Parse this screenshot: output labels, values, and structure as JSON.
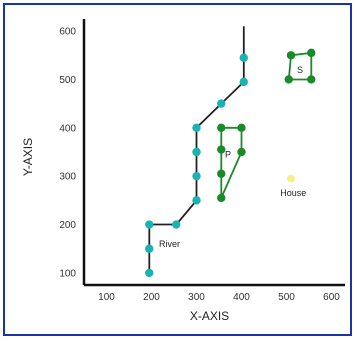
{
  "chart_data": {
    "type": "scatter",
    "title": "",
    "xlabel": "X-AXIS",
    "ylabel": "Y-AXIS",
    "xlim": [
      50,
      630
    ],
    "ylim": [
      75,
      625
    ],
    "x_ticks": [
      "100",
      "200",
      "300",
      "400",
      "500",
      "600"
    ],
    "x_tick_values": [
      100,
      200,
      300,
      400,
      500,
      600
    ],
    "y_ticks": [
      "100",
      "200",
      "300",
      "400",
      "500",
      "600"
    ],
    "y_tick_values": [
      100,
      200,
      300,
      400,
      500,
      600
    ],
    "grid": false,
    "series": [
      {
        "name": "River",
        "color": "#19b3b3",
        "line_color": "#222222",
        "closed": false,
        "points": [
          {
            "x": 195,
            "y": 100
          },
          {
            "x": 195,
            "y": 150
          },
          {
            "x": 195,
            "y": 200
          },
          {
            "x": 255,
            "y": 200
          },
          {
            "x": 300,
            "y": 250
          },
          {
            "x": 300,
            "y": 300
          },
          {
            "x": 300,
            "y": 350
          },
          {
            "x": 300,
            "y": 400
          },
          {
            "x": 355,
            "y": 450
          },
          {
            "x": 405,
            "y": 495
          },
          {
            "x": 405,
            "y": 545
          },
          {
            "x": 405,
            "y": 610
          }
        ],
        "marker_indices": [
          0,
          1,
          2,
          3,
          4,
          5,
          6,
          7,
          8,
          9,
          10
        ]
      },
      {
        "name": "P",
        "color": "#1a8a2a",
        "line_color": "#1a8a2a",
        "closed": true,
        "points": [
          {
            "x": 355,
            "y": 400
          },
          {
            "x": 400,
            "y": 400
          },
          {
            "x": 400,
            "y": 350
          },
          {
            "x": 355,
            "y": 255
          },
          {
            "x": 355,
            "y": 305
          },
          {
            "x": 355,
            "y": 355
          }
        ],
        "marker_indices": [
          0,
          1,
          2,
          3,
          4,
          5
        ]
      },
      {
        "name": "S",
        "color": "#1a8a2a",
        "line_color": "#1a8a2a",
        "closed": true,
        "points": [
          {
            "x": 510,
            "y": 550
          },
          {
            "x": 555,
            "y": 555
          },
          {
            "x": 555,
            "y": 500
          },
          {
            "x": 505,
            "y": 500
          }
        ],
        "marker_indices": [
          0,
          1,
          2,
          3
        ]
      }
    ],
    "annotations": [
      {
        "text": "River",
        "x": 240,
        "y": 160
      },
      {
        "text": "P",
        "x": 370,
        "y": 345
      },
      {
        "text": "S",
        "x": 530,
        "y": 520
      },
      {
        "text": "House",
        "x": 515,
        "y": 265
      }
    ],
    "house": {
      "x": 510,
      "y": 295,
      "color": "#f5ee8c"
    }
  }
}
